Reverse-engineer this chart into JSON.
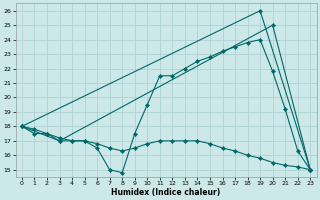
{
  "xlabel": "Humidex (Indice chaleur)",
  "xlim": [
    -0.5,
    23.5
  ],
  "ylim": [
    14.5,
    26.5
  ],
  "xticks": [
    0,
    1,
    2,
    3,
    4,
    5,
    6,
    7,
    8,
    9,
    10,
    11,
    12,
    13,
    14,
    15,
    16,
    17,
    18,
    19,
    20,
    21,
    22,
    23
  ],
  "yticks": [
    15,
    16,
    17,
    18,
    19,
    20,
    21,
    22,
    23,
    24,
    25,
    26
  ],
  "bg_color": "#cce8e8",
  "grid_color": "#aacece",
  "line_color": "#006868",
  "line1": {
    "comment": "steep triangle: (0,18)->(19,26)->(23,15)",
    "x": [
      0,
      19,
      23
    ],
    "y": [
      18.0,
      26.0,
      15.0
    ]
  },
  "line2": {
    "comment": "moderate triangle: (0,18)->(3,17)->(20,25)->(23,15)",
    "x": [
      0,
      3,
      20,
      23
    ],
    "y": [
      18.0,
      17.0,
      25.0,
      15.0
    ]
  },
  "line3": {
    "x": [
      0,
      1,
      2,
      3,
      4,
      5,
      6,
      7,
      8,
      9,
      10,
      11,
      12,
      13,
      14,
      15,
      16,
      17,
      18,
      19,
      20,
      21,
      22,
      23
    ],
    "y": [
      18.0,
      17.5,
      17.5,
      17.0,
      17.0,
      17.0,
      16.5,
      15.0,
      14.8,
      17.5,
      19.5,
      21.5,
      21.5,
      22.0,
      22.5,
      22.8,
      23.2,
      23.5,
      23.8,
      24.0,
      21.8,
      19.2,
      16.3,
      15.0
    ]
  },
  "line4": {
    "x": [
      0,
      1,
      2,
      3,
      4,
      5,
      6,
      7,
      8,
      9,
      10,
      11,
      12,
      13,
      14,
      15,
      16,
      17,
      18,
      19,
      20,
      21,
      22,
      23
    ],
    "y": [
      18.0,
      17.8,
      17.5,
      17.2,
      17.0,
      17.0,
      16.8,
      16.5,
      16.3,
      16.5,
      16.8,
      17.0,
      17.0,
      17.0,
      17.0,
      16.8,
      16.5,
      16.3,
      16.0,
      15.8,
      15.5,
      15.3,
      15.2,
      15.0
    ]
  }
}
